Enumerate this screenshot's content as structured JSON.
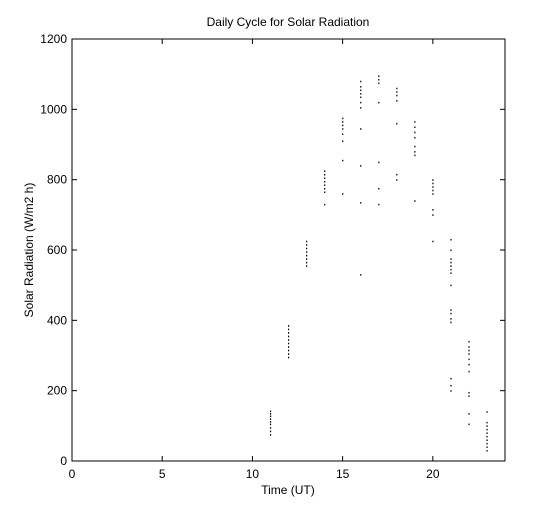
{
  "chart_data": {
    "type": "scatter",
    "title": "Daily Cycle for Solar Radiation",
    "xlabel": "Time (UT)",
    "ylabel": "Solar Radiation (W/m2 h)",
    "xlim": [
      0,
      24
    ],
    "ylim": [
      0,
      1200
    ],
    "xticks": [
      0,
      5,
      10,
      15,
      20
    ],
    "yticks": [
      0,
      200,
      400,
      600,
      800,
      1000,
      1200
    ],
    "grid": false,
    "legend": "none",
    "series": [
      {
        "color": "#000000",
        "points": [
          [
            11,
            75
          ],
          [
            11,
            85
          ],
          [
            11,
            95
          ],
          [
            11,
            105
          ],
          [
            11,
            112
          ],
          [
            11,
            120
          ],
          [
            11,
            128
          ],
          [
            11,
            135
          ],
          [
            11,
            142
          ],
          [
            12,
            295
          ],
          [
            12,
            305
          ],
          [
            12,
            315
          ],
          [
            12,
            325
          ],
          [
            12,
            335
          ],
          [
            12,
            345
          ],
          [
            12,
            355
          ],
          [
            12,
            365
          ],
          [
            12,
            375
          ],
          [
            12,
            385
          ],
          [
            13,
            555
          ],
          [
            13,
            565
          ],
          [
            13,
            575
          ],
          [
            13,
            585
          ],
          [
            13,
            595
          ],
          [
            13,
            605
          ],
          [
            13,
            615
          ],
          [
            13,
            625
          ],
          [
            14,
            730
          ],
          [
            14,
            765
          ],
          [
            14,
            775
          ],
          [
            14,
            785
          ],
          [
            14,
            795
          ],
          [
            14,
            805
          ],
          [
            14,
            815
          ],
          [
            14,
            825
          ],
          [
            15,
            760
          ],
          [
            15,
            855
          ],
          [
            15,
            910
          ],
          [
            15,
            930
          ],
          [
            15,
            945
          ],
          [
            15,
            955
          ],
          [
            15,
            965
          ],
          [
            15,
            975
          ],
          [
            16,
            530
          ],
          [
            16,
            735
          ],
          [
            16,
            840
          ],
          [
            16,
            945
          ],
          [
            16,
            1005
          ],
          [
            16,
            1020
          ],
          [
            16,
            1035
          ],
          [
            16,
            1045
          ],
          [
            16,
            1055
          ],
          [
            16,
            1065
          ],
          [
            16,
            1080
          ],
          [
            17,
            730
          ],
          [
            17,
            775
          ],
          [
            17,
            850
          ],
          [
            17,
            1020
          ],
          [
            17,
            1075
          ],
          [
            17,
            1085
          ],
          [
            17,
            1095
          ],
          [
            18,
            800
          ],
          [
            18,
            815
          ],
          [
            18,
            960
          ],
          [
            18,
            1025
          ],
          [
            18,
            1040
          ],
          [
            18,
            1050
          ],
          [
            18,
            1060
          ],
          [
            19,
            740
          ],
          [
            19,
            870
          ],
          [
            19,
            880
          ],
          [
            19,
            895
          ],
          [
            19,
            920
          ],
          [
            19,
            935
          ],
          [
            19,
            950
          ],
          [
            19,
            965
          ],
          [
            20,
            625
          ],
          [
            20,
            700
          ],
          [
            20,
            715
          ],
          [
            20,
            760
          ],
          [
            20,
            770
          ],
          [
            20,
            780
          ],
          [
            20,
            790
          ],
          [
            20,
            800
          ],
          [
            21,
            200
          ],
          [
            21,
            215
          ],
          [
            21,
            235
          ],
          [
            21,
            395
          ],
          [
            21,
            405
          ],
          [
            21,
            420
          ],
          [
            21,
            430
          ],
          [
            21,
            500
          ],
          [
            21,
            535
          ],
          [
            21,
            545
          ],
          [
            21,
            555
          ],
          [
            21,
            565
          ],
          [
            21,
            575
          ],
          [
            21,
            600
          ],
          [
            21,
            630
          ],
          [
            22,
            105
          ],
          [
            22,
            135
          ],
          [
            22,
            185
          ],
          [
            22,
            195
          ],
          [
            22,
            255
          ],
          [
            22,
            275
          ],
          [
            22,
            290
          ],
          [
            22,
            305
          ],
          [
            22,
            315
          ],
          [
            22,
            325
          ],
          [
            22,
            340
          ],
          [
            23,
            30
          ],
          [
            23,
            40
          ],
          [
            23,
            50
          ],
          [
            23,
            60
          ],
          [
            23,
            70
          ],
          [
            23,
            80
          ],
          [
            23,
            90
          ],
          [
            23,
            100
          ],
          [
            23,
            110
          ],
          [
            23,
            140
          ]
        ]
      }
    ]
  }
}
